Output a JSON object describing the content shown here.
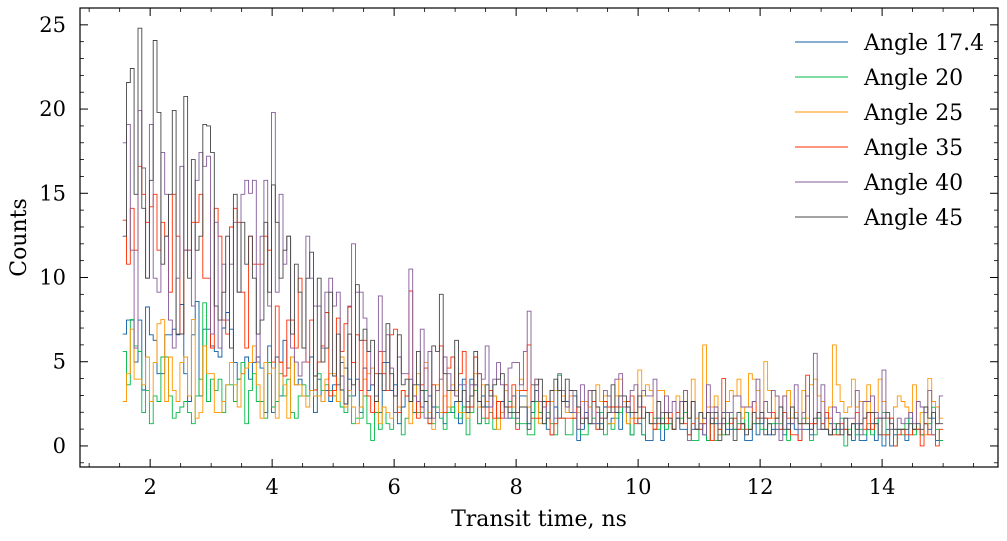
{
  "chart_data": {
    "type": "histogram-step",
    "title": "",
    "xlabel": "Transit time, ns",
    "ylabel": "Counts",
    "xlim": [
      0.85,
      15.9
    ],
    "ylim": [
      -1.25,
      26.0
    ],
    "x_ticks": [
      2,
      4,
      6,
      8,
      10,
      12,
      14
    ],
    "y_ticks": [
      0,
      5,
      10,
      15,
      20,
      25
    ],
    "grid": false,
    "legend_position": "top-right",
    "bins": {
      "start": 1.55,
      "end": 15.0,
      "count": 215
    },
    "series": [
      {
        "name": "Angle 17.4",
        "color": "#0C5DA5",
        "anchors": [
          [
            1.55,
            6.0
          ],
          [
            1.75,
            7.0
          ],
          [
            2.0,
            5.5
          ],
          [
            2.5,
            6.0
          ],
          [
            3.0,
            5.0
          ],
          [
            3.5,
            5.0
          ],
          [
            4.0,
            4.0
          ],
          [
            5.0,
            3.5
          ],
          [
            6.0,
            3.0
          ],
          [
            7.0,
            2.5
          ],
          [
            8.0,
            2.2
          ],
          [
            9.0,
            1.8
          ],
          [
            10.0,
            1.4
          ],
          [
            11.0,
            1.2
          ],
          [
            12.0,
            1.1
          ],
          [
            13.0,
            1.0
          ],
          [
            14.0,
            0.9
          ],
          [
            15.0,
            0.8
          ]
        ],
        "peaks": [
          [
            2.55,
            8.4
          ],
          [
            3.2,
            7.0
          ],
          [
            2.0,
            6.6
          ]
        ]
      },
      {
        "name": "Angle 20",
        "color": "#00B945",
        "anchors": [
          [
            1.55,
            4.4
          ],
          [
            2.0,
            3.5
          ],
          [
            2.5,
            3.0
          ],
          [
            3.0,
            3.5
          ],
          [
            4.0,
            3.0
          ],
          [
            5.0,
            2.5
          ],
          [
            6.0,
            2.0
          ],
          [
            7.0,
            1.8
          ],
          [
            8.0,
            1.6
          ],
          [
            9.0,
            1.4
          ],
          [
            10.0,
            1.3
          ],
          [
            11.0,
            1.2
          ],
          [
            12.0,
            1.1
          ],
          [
            13.0,
            1.0
          ],
          [
            14.0,
            1.0
          ],
          [
            15.0,
            1.0
          ]
        ],
        "peaks": [
          [
            2.9,
            8.5
          ],
          [
            1.7,
            7.5
          ],
          [
            8.7,
            4.2
          ],
          [
            14.85,
            2.3
          ]
        ]
      },
      {
        "name": "Angle 25",
        "color": "#FF9500",
        "anchors": [
          [
            1.55,
            5.0
          ],
          [
            2.0,
            4.5
          ],
          [
            3.0,
            4.0
          ],
          [
            4.0,
            3.5
          ],
          [
            5.0,
            3.0
          ],
          [
            6.0,
            3.0
          ],
          [
            7.0,
            3.0
          ],
          [
            8.0,
            2.8
          ],
          [
            9.0,
            2.6
          ],
          [
            10.0,
            2.5
          ],
          [
            11.0,
            2.5
          ],
          [
            12.0,
            2.4
          ],
          [
            13.0,
            2.3
          ],
          [
            14.0,
            2.2
          ],
          [
            15.0,
            2.0
          ]
        ],
        "peaks": [
          [
            2.2,
            7.5
          ],
          [
            2.7,
            7.5
          ],
          [
            11.1,
            6.0
          ],
          [
            13.2,
            6.0
          ],
          [
            12.1,
            5.0
          ],
          [
            10.0,
            4.5
          ],
          [
            14.8,
            4.0
          ]
        ]
      },
      {
        "name": "Angle 35",
        "color": "#FF2C00",
        "anchors": [
          [
            1.55,
            10.0
          ],
          [
            1.8,
            12.0
          ],
          [
            2.2,
            11.0
          ],
          [
            3.0,
            10.0
          ],
          [
            4.0,
            8.0
          ],
          [
            5.0,
            5.5
          ],
          [
            6.0,
            4.5
          ],
          [
            7.0,
            3.5
          ],
          [
            8.0,
            2.8
          ],
          [
            9.0,
            2.2
          ],
          [
            10.0,
            1.8
          ],
          [
            11.0,
            1.5
          ],
          [
            12.0,
            1.3
          ],
          [
            13.0,
            1.2
          ],
          [
            14.0,
            1.0
          ],
          [
            15.0,
            0.9
          ]
        ],
        "peaks": [
          [
            1.55,
            13.4
          ],
          [
            2.0,
            14.2
          ],
          [
            3.35,
            13.0
          ],
          [
            6.3,
            9.2
          ],
          [
            8.2,
            6.0
          ],
          [
            12.8,
            4.2
          ],
          [
            11.4,
            4.0
          ]
        ]
      },
      {
        "name": "Angle 40",
        "color": "#845B97",
        "anchors": [
          [
            1.55,
            12.0
          ],
          [
            2.0,
            13.0
          ],
          [
            2.5,
            12.0
          ],
          [
            3.0,
            11.5
          ],
          [
            3.5,
            11.0
          ],
          [
            4.0,
            10.0
          ],
          [
            5.0,
            7.0
          ],
          [
            6.0,
            5.0
          ],
          [
            7.0,
            4.0
          ],
          [
            8.0,
            3.5
          ],
          [
            9.0,
            3.0
          ],
          [
            10.0,
            2.5
          ],
          [
            11.0,
            2.3
          ],
          [
            12.0,
            2.2
          ],
          [
            13.0,
            2.0
          ],
          [
            14.0,
            2.0
          ],
          [
            15.0,
            1.8
          ]
        ],
        "peaks": [
          [
            1.55,
            18.0
          ],
          [
            1.9,
            16.5
          ],
          [
            4.0,
            19.8
          ],
          [
            2.95,
            17.2
          ],
          [
            3.65,
            15.0
          ],
          [
            5.35,
            12.0
          ],
          [
            6.3,
            10.5
          ],
          [
            8.2,
            8.0
          ],
          [
            12.9,
            5.5
          ],
          [
            14.0,
            4.5
          ]
        ]
      },
      {
        "name": "Angle 45",
        "color": "#474747",
        "anchors": [
          [
            1.55,
            13.0
          ],
          [
            1.8,
            15.0
          ],
          [
            2.0,
            16.0
          ],
          [
            2.5,
            14.0
          ],
          [
            3.0,
            12.0
          ],
          [
            3.5,
            10.5
          ],
          [
            4.0,
            9.0
          ],
          [
            5.0,
            6.5
          ],
          [
            6.0,
            5.0
          ],
          [
            7.0,
            3.8
          ],
          [
            8.0,
            3.0
          ],
          [
            9.0,
            2.5
          ],
          [
            10.0,
            2.0
          ],
          [
            11.0,
            1.8
          ],
          [
            12.0,
            1.6
          ],
          [
            13.0,
            1.5
          ],
          [
            14.0,
            1.4
          ],
          [
            15.0,
            1.3
          ]
        ],
        "peaks": [
          [
            1.85,
            24.8
          ],
          [
            2.15,
            19.8
          ],
          [
            2.7,
            17.0
          ],
          [
            2.95,
            19.0
          ],
          [
            4.0,
            15.5
          ],
          [
            4.65,
            11.5
          ],
          [
            6.8,
            9.0
          ]
        ]
      }
    ]
  }
}
